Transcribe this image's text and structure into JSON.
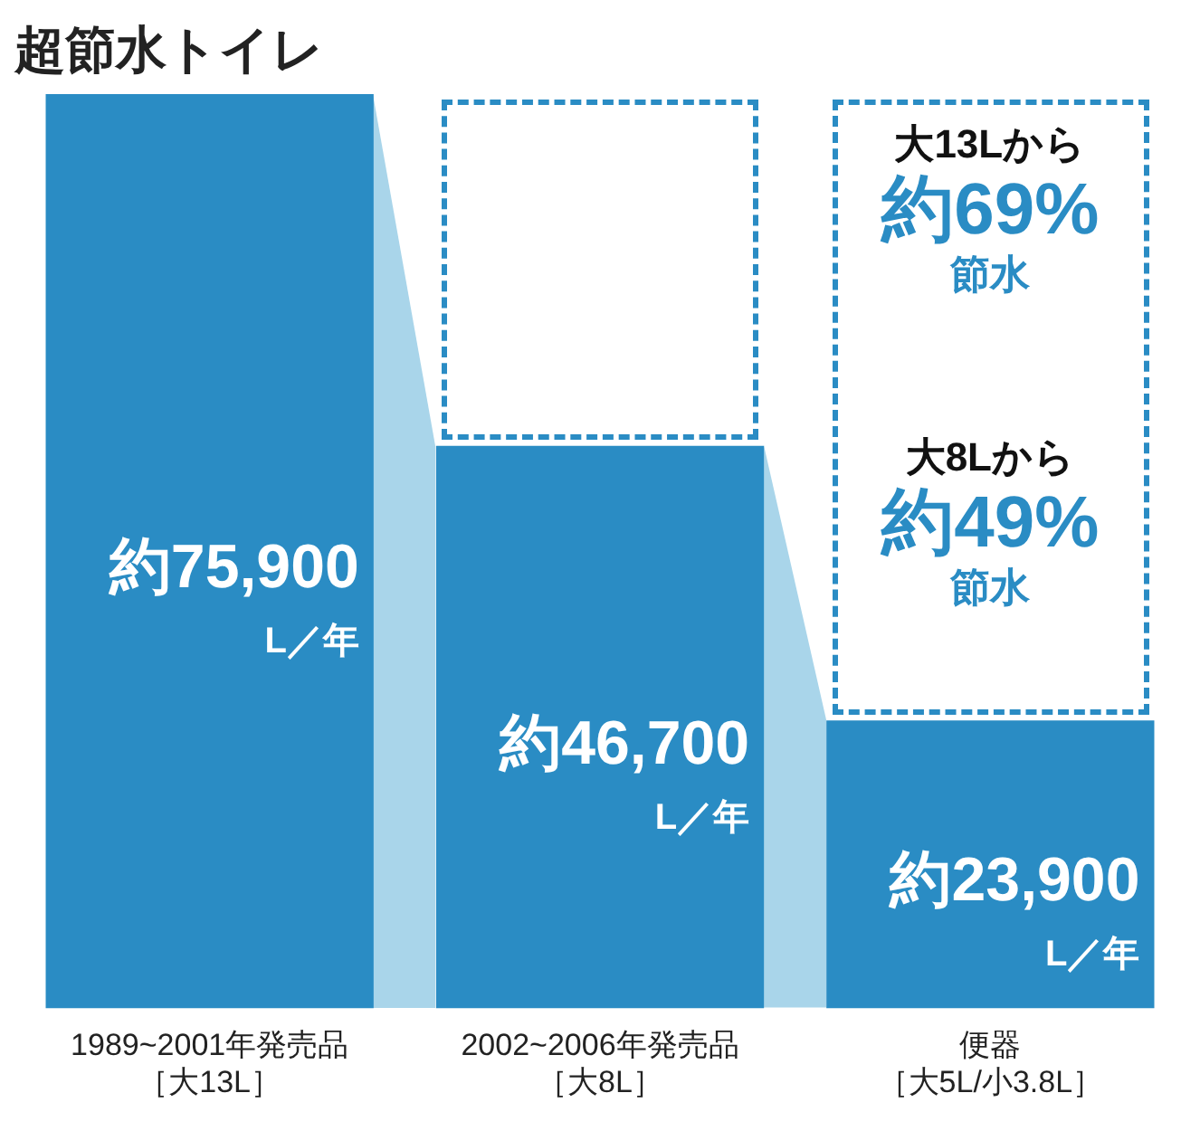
{
  "chart_data": {
    "type": "bar",
    "title": "超節水トイレ",
    "categories": [
      "1989~2001年発売品［大13L］",
      "2002~2006年発売品［大8L］",
      "便器［大5L/小3.8L］"
    ],
    "values": [
      75900,
      46700,
      23900
    ],
    "value_labels": [
      "約75,900\nL／年",
      "約46,700\nL／年",
      "約23,900\nL／年"
    ],
    "color": "#2a8cc4",
    "annotations": [
      "大13Lから",
      "約69%",
      "節水",
      "大8Lから",
      "約49%",
      "節水"
    ],
    "grid": false,
    "legend": false,
    "tick_labels": "x"
  }
}
